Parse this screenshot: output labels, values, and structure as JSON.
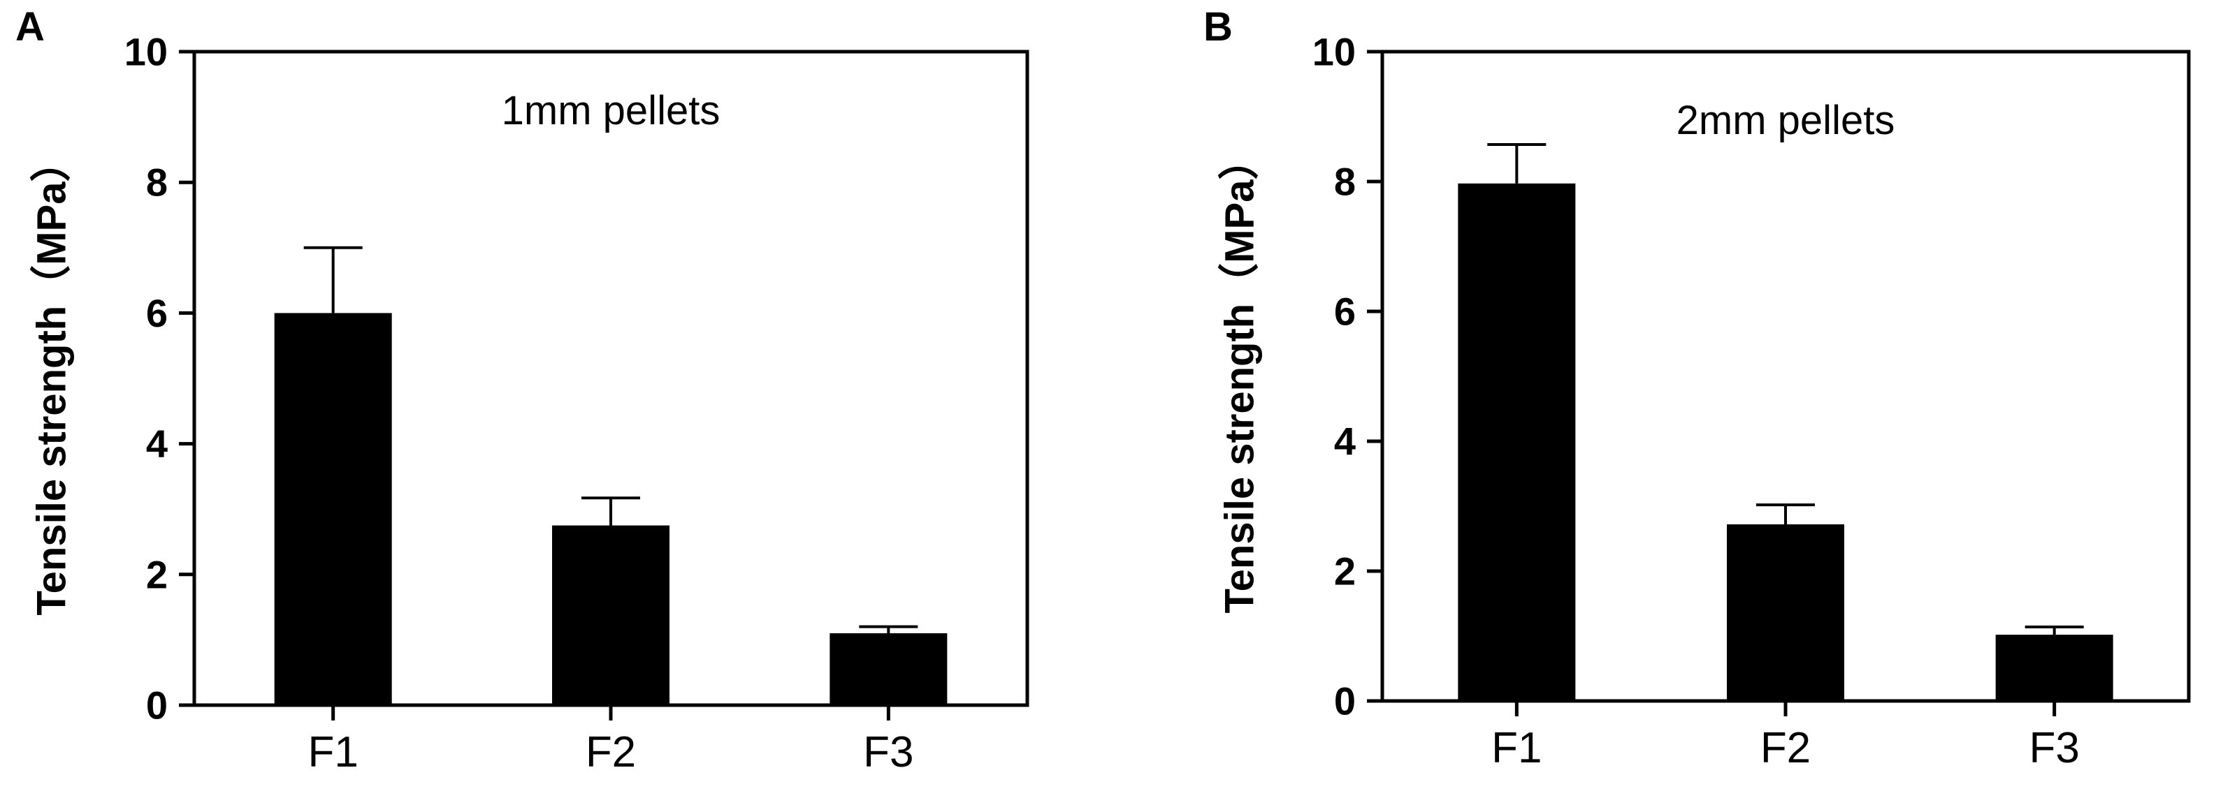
{
  "chart_data": [
    {
      "type": "bar",
      "panel": "A",
      "annotation": "1mm pellets",
      "ylabel": "Tensile strength（MPa）",
      "xlabel": "",
      "categories": [
        "F1",
        "F2",
        "F3"
      ],
      "values": [
        6.0,
        2.75,
        1.1
      ],
      "errors": [
        1.0,
        0.42,
        0.1
      ],
      "ylim": [
        0,
        10
      ],
      "yticks": [
        "0",
        "2",
        "4",
        "6",
        "8",
        "10"
      ],
      "grid": false,
      "bar_color": "#000000"
    },
    {
      "type": "bar",
      "panel": "B",
      "annotation": "2mm pellets",
      "ylabel": "Tensile strength（MPa）",
      "xlabel": "",
      "categories": [
        "F1",
        "F2",
        "F3"
      ],
      "values": [
        7.97,
        2.72,
        1.02
      ],
      "errors": [
        0.6,
        0.3,
        0.12
      ],
      "ylim": [
        0,
        10
      ],
      "yticks": [
        "0",
        "2",
        "4",
        "6",
        "8",
        "10"
      ],
      "grid": false,
      "bar_color": "#000000"
    }
  ]
}
